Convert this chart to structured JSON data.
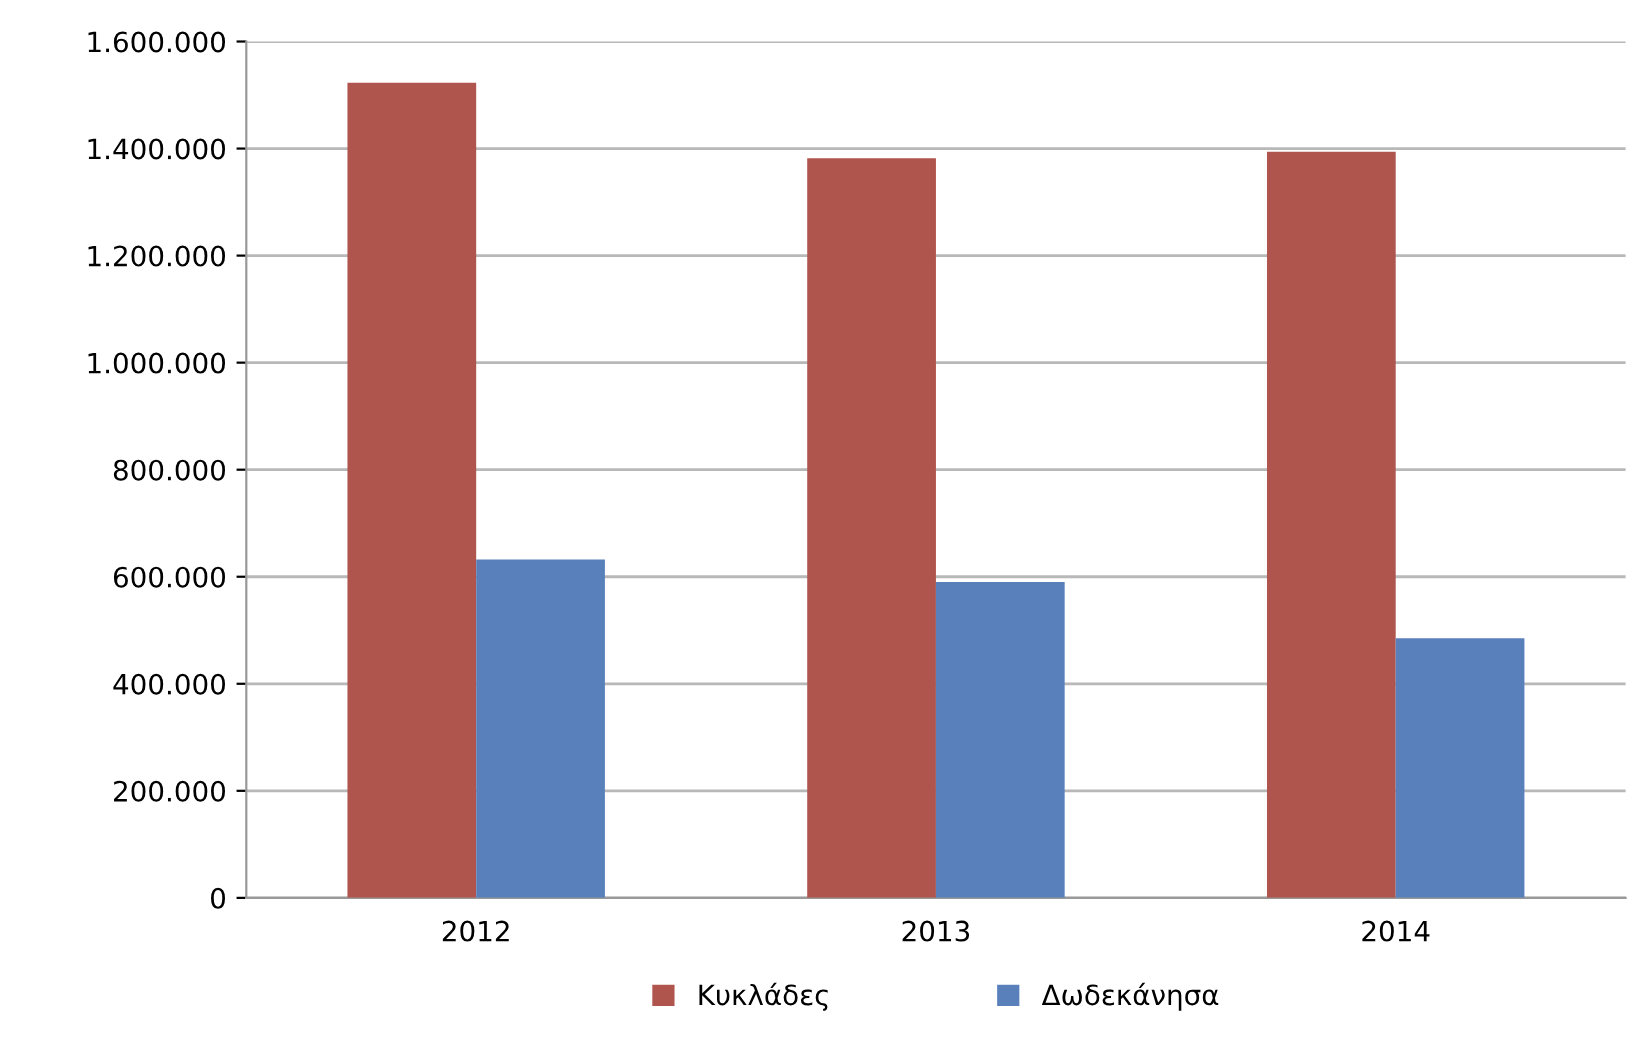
{
  "chart_data": {
    "type": "bar",
    "categories": [
      "2012",
      "2013",
      "2014"
    ],
    "series": [
      {
        "name": "Κυκλάδες",
        "color": "#b0554d",
        "values": [
          1523000,
          1382000,
          1394000
        ]
      },
      {
        "name": "Δωδεκάνησα",
        "color": "#5a80bb",
        "values": [
          632000,
          590000,
          485000
        ]
      }
    ],
    "ylim": [
      0,
      1600000
    ],
    "yticks": [
      0,
      {
        "value": 200000,
        "label": "200.000"
      },
      {
        "value": 400000,
        "label": "400.000"
      },
      {
        "value": 600000,
        "label": "600.000"
      },
      {
        "value": 800000,
        "label": "800.000"
      },
      {
        "value": 1000000,
        "label": "1.000.000"
      },
      {
        "value": 1200000,
        "label": "1.200.000"
      },
      {
        "value": 1400000,
        "label": "1.400.000"
      },
      {
        "value": 1600000,
        "label": "1.600.000"
      }
    ],
    "grid": "y",
    "legend": "bottom"
  }
}
